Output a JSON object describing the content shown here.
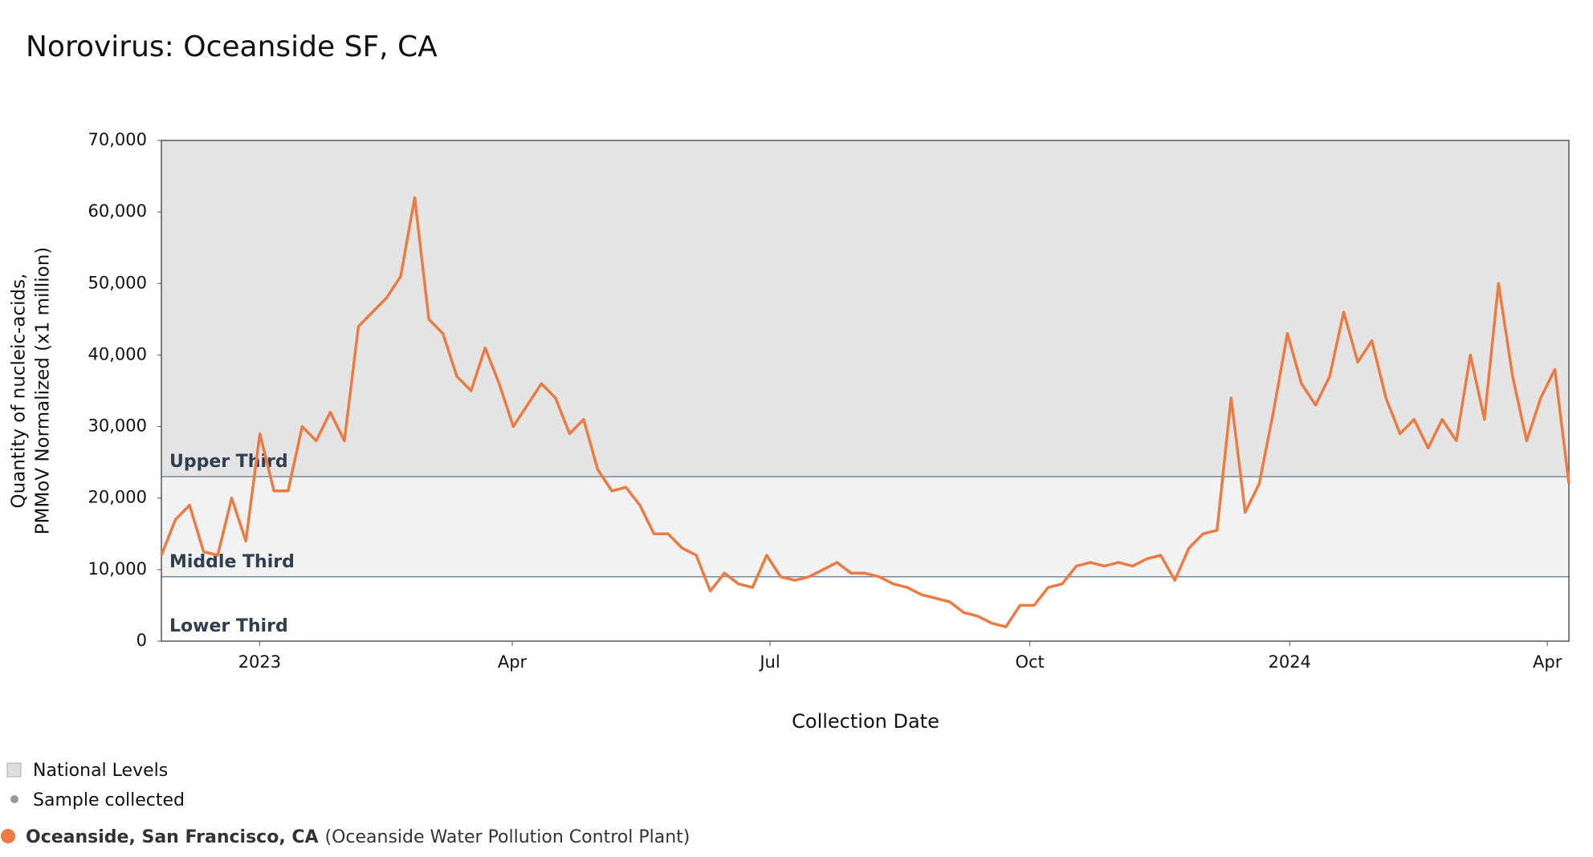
{
  "chart_data": {
    "type": "line",
    "title": "Norovirus: Oceanside SF, CA",
    "xlabel": "Collection Date",
    "ylabel": [
      "Quantity of nucleic-acids,",
      "PMMoV Normalized (x1 million)"
    ],
    "xlim": [
      0,
      100
    ],
    "xticks": [
      {
        "value": 6.98,
        "label": "2023"
      },
      {
        "value": 24.93,
        "label": "Apr"
      },
      {
        "value": 43.24,
        "label": "Jul"
      },
      {
        "value": 61.7,
        "label": "Oct"
      },
      {
        "value": 80.16,
        "label": "2024"
      },
      {
        "value": 98.47,
        "label": "Apr"
      }
    ],
    "ylim": [
      0,
      70000
    ],
    "yticks": [
      0,
      {
        "value": 10000,
        "label": "10,000"
      },
      {
        "value": 20000,
        "label": "20,000"
      },
      {
        "value": 30000,
        "label": "30,000"
      },
      {
        "value": 40000,
        "label": "40,000"
      },
      {
        "value": 50000,
        "label": "50,000"
      },
      {
        "value": 60000,
        "label": "60,000"
      },
      {
        "value": 70000,
        "label": "70,000"
      }
    ],
    "levels": [
      {
        "label": "Lower Third",
        "min": 0,
        "color": "#ffffff"
      },
      {
        "label": "Middle Third",
        "min": 9000,
        "color": "#f2f2f2"
      },
      {
        "label": "Upper Third",
        "min": 23000,
        "color": "#e4e4e4"
      }
    ],
    "series": [
      {
        "name": "Oceanside, San Francisco, CA",
        "site": "(Oceanside Water Pollution Control Plant)",
        "color": "#ec7a43",
        "values": [
          12000,
          17000,
          19000,
          12500,
          12000,
          20000,
          14000,
          29000,
          21000,
          21000,
          30000,
          28000,
          32000,
          28000,
          44000,
          46000,
          48000,
          51000,
          62000,
          45000,
          43000,
          37000,
          35000,
          41000,
          36000,
          30000,
          33000,
          36000,
          34000,
          29000,
          31000,
          24000,
          21000,
          21500,
          19000,
          15000,
          15000,
          13000,
          12000,
          7000,
          9500,
          8000,
          7500,
          12000,
          9000,
          8500,
          9000,
          10000,
          11000,
          9500,
          9500,
          9000,
          8000,
          7500,
          6500,
          6000,
          5500,
          4000,
          3500,
          2500,
          2000,
          5000,
          5000,
          7500,
          8000,
          10500,
          11000,
          10500,
          11000,
          10500,
          11500,
          12000,
          8500,
          13000,
          15000,
          15500,
          34000,
          18000,
          22000,
          32000,
          43000,
          36000,
          33000,
          37000,
          46000,
          39000,
          42000,
          34000,
          29000,
          31000,
          27000,
          31000,
          28000,
          40000,
          31000,
          50000,
          37000,
          28000,
          34000,
          38000,
          22000
        ]
      }
    ],
    "legend": [
      {
        "label": "National Levels",
        "color": "#dddddd"
      },
      {
        "label": "Sample collected",
        "color": "#999999"
      }
    ]
  }
}
